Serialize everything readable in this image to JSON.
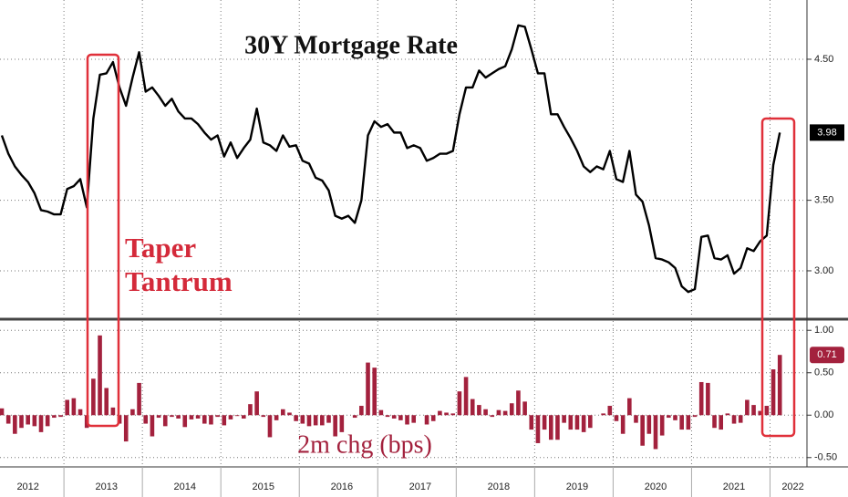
{
  "chart_data": [
    {
      "type": "line",
      "title": "30Y Mortgage Rate",
      "annotation": [
        "Taper",
        "Tantrum"
      ],
      "categories": [
        null,
        null,
        null,
        null,
        "2012",
        null,
        null,
        null,
        null,
        null,
        null,
        null,
        null,
        null,
        null,
        null,
        "2013",
        null,
        null,
        null,
        null,
        null,
        null,
        null,
        null,
        null,
        null,
        null,
        "2014",
        null,
        null,
        null,
        null,
        null,
        null,
        null,
        null,
        null,
        null,
        null,
        "2015",
        null,
        null,
        null,
        null,
        null,
        null,
        null,
        null,
        null,
        null,
        null,
        "2016",
        null,
        null,
        null,
        null,
        null,
        null,
        null,
        null,
        null,
        null,
        null,
        "2017",
        null,
        null,
        null,
        null,
        null,
        null,
        null,
        null,
        null,
        null,
        null,
        "2018",
        null,
        null,
        null,
        null,
        null,
        null,
        null,
        null,
        null,
        null,
        null,
        "2019",
        null,
        null,
        null,
        null,
        null,
        null,
        null,
        null,
        null,
        null,
        null,
        "2020",
        null,
        null,
        null,
        null,
        null,
        null,
        null,
        null,
        null,
        null,
        null,
        "2021",
        null,
        null,
        null,
        null,
        null,
        null,
        null,
        null,
        "2022"
      ],
      "values": [
        3.96,
        3.83,
        3.74,
        3.68,
        3.63,
        3.55,
        3.43,
        3.42,
        3.4,
        3.4,
        3.58,
        3.6,
        3.65,
        3.45,
        4.08,
        4.39,
        4.4,
        4.48,
        4.3,
        4.17,
        4.37,
        4.55,
        4.27,
        4.3,
        4.24,
        4.17,
        4.22,
        4.13,
        4.08,
        4.08,
        4.04,
        3.98,
        3.93,
        3.96,
        3.81,
        3.91,
        3.8,
        3.87,
        3.93,
        4.15,
        3.91,
        3.89,
        3.85,
        3.96,
        3.88,
        3.89,
        3.78,
        3.76,
        3.66,
        3.64,
        3.57,
        3.39,
        3.37,
        3.39,
        3.34,
        3.5,
        3.96,
        4.06,
        4.02,
        4.04,
        3.98,
        3.98,
        3.87,
        3.89,
        3.87,
        3.78,
        3.8,
        3.83,
        3.83,
        3.85,
        4.11,
        4.3,
        4.3,
        4.42,
        4.37,
        4.4,
        4.43,
        4.45,
        4.57,
        4.74,
        4.73,
        4.57,
        4.4,
        4.4,
        4.11,
        4.11,
        4.02,
        3.94,
        3.85,
        3.74,
        3.7,
        3.74,
        3.72,
        3.85,
        3.65,
        3.63,
        3.85,
        3.54,
        3.49,
        3.32,
        3.09,
        3.08,
        3.06,
        3.02,
        2.89,
        2.85,
        2.87,
        3.24,
        3.25,
        3.09,
        3.08,
        3.11,
        2.98,
        3.02,
        3.16,
        3.14,
        3.21,
        3.25,
        3.75,
        3.98,
        null,
        null
      ],
      "color": "#000000",
      "ylim": [
        2.67,
        4.92
      ],
      "yticks": [
        {
          "value": 3,
          "label": "3.00"
        },
        {
          "value": 3.5,
          "label": "3.50"
        },
        {
          "value": 4.5,
          "label": "4.50"
        }
      ],
      "grid": true
    },
    {
      "type": "bar",
      "annotation": "2m chg (bps)",
      "values": [
        0.08,
        -0.1,
        -0.22,
        -0.15,
        -0.11,
        -0.13,
        -0.2,
        -0.13,
        -0.03,
        -0.02,
        0.18,
        0.2,
        0.07,
        -0.15,
        0.43,
        0.94,
        0.32,
        0.09,
        -0.1,
        -0.31,
        0.07,
        0.38,
        -0.1,
        -0.25,
        -0.03,
        -0.13,
        -0.02,
        -0.04,
        -0.14,
        -0.05,
        -0.04,
        -0.1,
        -0.11,
        -0.02,
        -0.12,
        -0.05,
        -0.01,
        -0.04,
        0.13,
        0.28,
        -0.02,
        -0.26,
        -0.06,
        0.07,
        0.03,
        -0.07,
        -0.1,
        -0.13,
        -0.12,
        -0.12,
        -0.09,
        -0.25,
        -0.2,
        0.0,
        -0.03,
        0.11,
        0.62,
        0.56,
        0.06,
        -0.02,
        -0.04,
        -0.06,
        -0.11,
        -0.09,
        0.0,
        -0.11,
        -0.07,
        0.05,
        0.03,
        0.02,
        0.28,
        0.45,
        0.19,
        0.12,
        0.07,
        -0.02,
        0.06,
        0.05,
        0.14,
        0.29,
        0.16,
        -0.17,
        -0.33,
        -0.17,
        -0.29,
        -0.29,
        -0.09,
        -0.17,
        -0.17,
        -0.2,
        -0.15,
        0.0,
        0.02,
        0.11,
        -0.07,
        -0.22,
        0.2,
        -0.09,
        -0.36,
        -0.22,
        -0.4,
        -0.24,
        -0.03,
        -0.06,
        -0.17,
        -0.17,
        -0.02,
        0.39,
        0.38,
        -0.15,
        -0.17,
        0.02,
        -0.1,
        -0.09,
        0.18,
        0.12,
        0.05,
        0.11,
        0.54,
        0.71,
        null,
        null
      ],
      "color": "#a3213d",
      "ylim": [
        -0.61,
        1.11
      ],
      "yticks": [
        {
          "value": 1,
          "label": "1.00"
        },
        {
          "value": 0.5,
          "label": "0.50"
        },
        {
          "value": 0,
          "label": "0.00"
        },
        {
          "value": -0.5,
          "label": "-0.50"
        }
      ],
      "grid": true
    }
  ]
}
